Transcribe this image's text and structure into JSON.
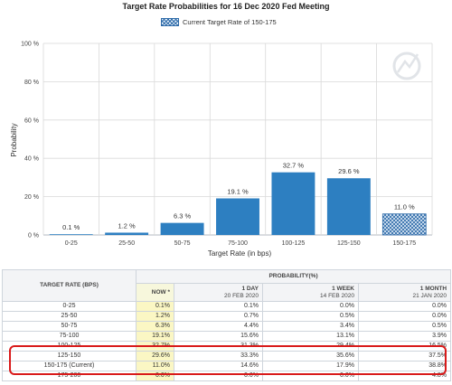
{
  "chart_data": {
    "type": "bar",
    "title": "Target Rate Probabilities for 16 Dec 2020 Fed Meeting",
    "legend": {
      "label": "Current Target Rate of 150-175",
      "placement": "top-center"
    },
    "xlabel": "Target Rate (in bps)",
    "ylabel": "Probability",
    "ylim": [
      0,
      100
    ],
    "yticks": [
      "0 %",
      "20 %",
      "40 %",
      "60 %",
      "80 %",
      "100 %"
    ],
    "grid": true,
    "categories": [
      "0-25",
      "25-50",
      "50-75",
      "75-100",
      "100-125",
      "125-150",
      "150-175"
    ],
    "values": [
      0.1,
      1.2,
      6.3,
      19.1,
      32.7,
      29.6,
      11.0
    ],
    "value_labels": [
      "0.1 %",
      "1.2 %",
      "6.3 %",
      "19.1 %",
      "32.7 %",
      "29.6 %",
      "11.0 %"
    ],
    "current_category": "150-175",
    "colors": {
      "bar": "#2d7fc1",
      "current_bar_hatch": "#2d6aa8",
      "grid": "#d9d9d9"
    }
  },
  "table": {
    "header_rate": "TARGET RATE (BPS)",
    "header_probability": "PROBABILITY(%)",
    "columns": [
      {
        "line1": "NOW *",
        "line2": ""
      },
      {
        "line1": "1 DAY",
        "line2": "20 FEB 2020"
      },
      {
        "line1": "1 WEEK",
        "line2": "14 FEB 2020"
      },
      {
        "line1": "1 MONTH",
        "line2": "21 JAN 2020"
      }
    ],
    "rows": [
      {
        "rate": "0-25",
        "now": "0.1%",
        "day": "0.1%",
        "week": "0.0%",
        "month": "0.0%"
      },
      {
        "rate": "25-50",
        "now": "1.2%",
        "day": "0.7%",
        "week": "0.5%",
        "month": "0.0%"
      },
      {
        "rate": "50-75",
        "now": "6.3%",
        "day": "4.4%",
        "week": "3.4%",
        "month": "0.5%"
      },
      {
        "rate": "75-100",
        "now": "19.1%",
        "day": "15.6%",
        "week": "13.1%",
        "month": "3.9%"
      },
      {
        "rate": "100-125",
        "now": "32.7%",
        "day": "31.3%",
        "week": "29.4%",
        "month": "16.5%"
      },
      {
        "rate": "125-150",
        "now": "29.6%",
        "day": "33.3%",
        "week": "35.6%",
        "month": "37.5%"
      },
      {
        "rate": "150-175 (Current)",
        "now": "11.0%",
        "day": "14.6%",
        "week": "17.9%",
        "month": "38.8%"
      },
      {
        "rate": "175-200",
        "now": "0.0%",
        "day": "0.0%",
        "week": "0.0%",
        "month": "4.8%"
      }
    ]
  }
}
